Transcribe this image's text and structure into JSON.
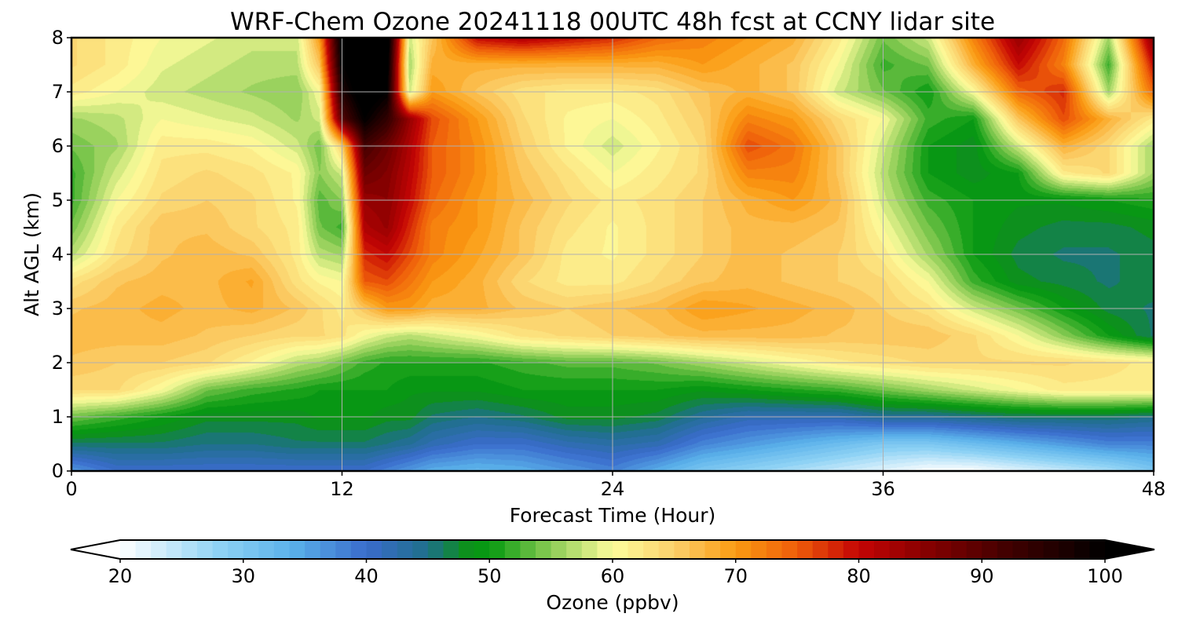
{
  "chart_data": {
    "type": "heatmap",
    "subtype": "filled-contour",
    "title": "WRF-Chem Ozone  20241118 00UTC 48h fcst at CCNY lidar site",
    "xlabel": "Forecast Time (Hour)",
    "ylabel": "Alt AGL (km)",
    "xlim": [
      0,
      48
    ],
    "ylim": [
      0,
      8
    ],
    "xticks": [
      0,
      12,
      24,
      36,
      48
    ],
    "yticks": [
      0,
      1,
      2,
      3,
      4,
      5,
      6,
      7,
      8
    ],
    "grid": true,
    "colorbar": {
      "label": "Ozone  (ppbv)",
      "orientation": "horizontal",
      "extend": "both",
      "range": [
        20,
        100
      ],
      "ticks": [
        20,
        30,
        40,
        50,
        60,
        70,
        80,
        90,
        100
      ],
      "colors": [
        {
          "v": 20,
          "c": "#ffffff"
        },
        {
          "v": 28,
          "c": "#8fd3f5"
        },
        {
          "v": 34,
          "c": "#5ab1ea"
        },
        {
          "v": 40,
          "c": "#3a6ccc"
        },
        {
          "v": 45,
          "c": "#1e6f8a"
        },
        {
          "v": 48,
          "c": "#0d8f1e"
        },
        {
          "v": 50,
          "c": "#069a10"
        },
        {
          "v": 55,
          "c": "#8ccc55"
        },
        {
          "v": 60,
          "c": "#fdfc9c"
        },
        {
          "v": 65,
          "c": "#fbd06b"
        },
        {
          "v": 70,
          "c": "#fb9b12"
        },
        {
          "v": 75,
          "c": "#ee5c0a"
        },
        {
          "v": 80,
          "c": "#c40404"
        },
        {
          "v": 85,
          "c": "#8c0000"
        },
        {
          "v": 92,
          "c": "#420000"
        },
        {
          "v": 100,
          "c": "#000000"
        }
      ]
    },
    "x": [
      0,
      2,
      4,
      6,
      8,
      10,
      11,
      12,
      13,
      14,
      15,
      16,
      18,
      20,
      22,
      24,
      26,
      28,
      30,
      32,
      34,
      36,
      38,
      40,
      42,
      44,
      46,
      48
    ],
    "y": [
      0,
      0.5,
      1,
      1.5,
      2,
      2.5,
      3,
      3.5,
      4,
      4.5,
      5,
      5.5,
      6,
      6.5,
      7,
      7.5,
      8
    ],
    "z": [
      [
        36,
        40,
        40,
        40,
        40,
        40,
        40,
        40,
        40,
        38,
        36,
        34,
        33,
        34,
        36,
        38,
        34,
        30,
        28,
        26,
        24,
        22,
        20,
        20,
        22,
        24,
        26,
        30
      ],
      [
        46,
        46,
        46,
        45,
        45,
        46,
        46,
        46,
        46,
        45,
        44,
        42,
        40,
        40,
        42,
        43,
        42,
        38,
        36,
        34,
        32,
        30,
        30,
        32,
        34,
        36,
        38,
        38
      ],
      [
        54,
        52,
        50,
        48,
        48,
        48,
        49,
        49,
        49,
        48,
        48,
        46,
        45,
        46,
        48,
        48,
        47,
        44,
        42,
        42,
        42,
        44,
        44,
        45,
        46,
        46,
        46,
        45
      ],
      [
        64,
        64,
        60,
        54,
        52,
        51,
        50,
        50,
        50,
        50,
        49,
        49,
        49,
        50,
        50,
        50,
        50,
        49,
        50,
        51,
        52,
        54,
        56,
        58,
        60,
        62,
        62,
        62
      ],
      [
        66,
        65,
        65,
        64,
        61,
        57,
        56,
        54,
        52,
        51,
        51,
        51,
        51,
        52,
        53,
        53,
        54,
        56,
        58,
        60,
        62,
        63,
        64,
        64,
        64,
        64,
        63,
        62
      ],
      [
        67,
        67,
        67,
        66,
        65,
        64,
        64,
        63,
        60,
        58,
        57,
        58,
        60,
        63,
        64,
        65,
        66,
        67,
        67,
        67,
        66,
        66,
        66,
        64,
        60,
        55,
        50,
        46
      ],
      [
        66,
        67,
        68,
        67,
        68,
        66,
        64,
        62,
        66,
        70,
        70,
        68,
        68,
        66,
        65,
        66,
        67,
        70,
        69,
        68,
        67,
        65,
        63,
        58,
        54,
        50,
        47,
        46
      ],
      [
        63,
        66,
        67,
        67,
        69,
        63,
        61,
        60,
        75,
        76,
        73,
        70,
        68,
        64,
        62,
        62,
        64,
        66,
        67,
        66,
        65,
        64,
        60,
        52,
        48,
        47,
        46,
        47
      ],
      [
        57,
        63,
        66,
        67,
        66,
        62,
        57,
        56,
        78,
        80,
        76,
        72,
        69,
        66,
        62,
        61,
        63,
        65,
        67,
        66,
        65,
        62,
        56,
        50,
        47,
        46,
        46,
        47
      ],
      [
        54,
        62,
        66,
        66,
        64,
        62,
        54,
        52,
        82,
        84,
        78,
        72,
        70,
        66,
        63,
        61,
        63,
        65,
        67,
        67,
        66,
        60,
        54,
        50,
        48,
        47,
        47,
        48
      ],
      [
        52,
        60,
        64,
        65,
        64,
        61,
        53,
        55,
        84,
        85,
        80,
        74,
        70,
        67,
        64,
        62,
        63,
        65,
        68,
        70,
        67,
        58,
        52,
        50,
        49,
        49,
        50,
        51
      ],
      [
        52,
        58,
        63,
        64,
        63,
        61,
        55,
        58,
        88,
        86,
        81,
        75,
        71,
        66,
        63,
        60,
        62,
        64,
        72,
        72,
        66,
        57,
        50,
        48,
        50,
        62,
        64,
        56
      ],
      [
        54,
        56,
        62,
        62,
        61,
        58,
        54,
        65,
        92,
        88,
        82,
        75,
        71,
        65,
        61,
        58,
        61,
        64,
        76,
        73,
        66,
        58,
        50,
        48,
        58,
        68,
        64,
        56
      ],
      [
        56,
        57,
        60,
        59,
        58,
        56,
        58,
        90,
        100,
        94,
        84,
        76,
        70,
        64,
        61,
        60,
        62,
        65,
        72,
        70,
        64,
        60,
        52,
        50,
        66,
        76,
        68,
        62
      ],
      [
        62,
        60,
        58,
        57,
        56,
        55,
        60,
        96,
        104,
        100,
        58,
        70,
        66,
        63,
        62,
        62,
        63,
        66,
        68,
        66,
        58,
        54,
        50,
        60,
        74,
        78,
        56,
        74
      ],
      [
        64,
        62,
        59,
        58,
        57,
        57,
        66,
        100,
        105,
        102,
        56,
        68,
        68,
        68,
        68,
        68,
        68,
        70,
        68,
        66,
        60,
        52,
        54,
        68,
        80,
        72,
        52,
        80
      ],
      [
        64,
        62,
        60,
        59,
        58,
        58,
        70,
        102,
        106,
        104,
        58,
        66,
        80,
        82,
        80,
        78,
        74,
        72,
        70,
        68,
        62,
        54,
        58,
        72,
        84,
        74,
        56,
        86
      ]
    ]
  }
}
